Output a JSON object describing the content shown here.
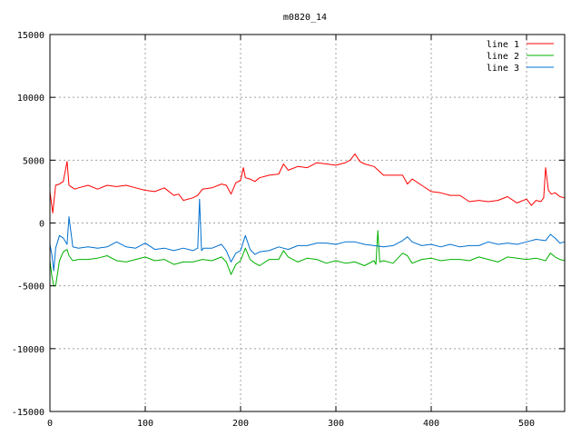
{
  "chart_data": {
    "type": "line",
    "title": "m0820_14",
    "xlabel": "",
    "ylabel": "",
    "xlim": [
      0,
      540
    ],
    "ylim": [
      -15000,
      15000
    ],
    "x_ticks": [
      "0",
      "100",
      "200",
      "300",
      "400",
      "500"
    ],
    "y_ticks": [
      "15000",
      "10000",
      "5000",
      "0",
      "-5000",
      "-10000",
      "-15000"
    ],
    "grid": true,
    "legend_position": "top-right",
    "series": [
      {
        "name": "line 1",
        "color": "#ff0000",
        "x": [
          0,
          3,
          6,
          10,
          14,
          18,
          20,
          22,
          26,
          30,
          40,
          50,
          60,
          70,
          80,
          90,
          100,
          110,
          120,
          130,
          135,
          140,
          150,
          155,
          160,
          170,
          180,
          185,
          190,
          195,
          200,
          203,
          205,
          210,
          215,
          220,
          230,
          240,
          245,
          250,
          260,
          270,
          280,
          290,
          300,
          310,
          315,
          320,
          325,
          330,
          340,
          350,
          360,
          370,
          375,
          380,
          390,
          400,
          410,
          420,
          430,
          440,
          450,
          460,
          470,
          480,
          490,
          500,
          505,
          510,
          515,
          518,
          520,
          523,
          526,
          530,
          535,
          540
        ],
        "y": [
          2500,
          800,
          3000,
          3100,
          3300,
          4900,
          3000,
          2900,
          2700,
          2800,
          3000,
          2700,
          3000,
          2900,
          3000,
          2800,
          2600,
          2500,
          2800,
          2200,
          2300,
          1800,
          2000,
          2200,
          2700,
          2800,
          3100,
          3000,
          2300,
          3200,
          3400,
          4400,
          3600,
          3500,
          3300,
          3600,
          3800,
          3900,
          4700,
          4200,
          4500,
          4400,
          4800,
          4700,
          4600,
          4800,
          5000,
          5500,
          4900,
          4700,
          4500,
          3800,
          3800,
          3800,
          3100,
          3500,
          3000,
          2500,
          2400,
          2200,
          2200,
          1700,
          1800,
          1700,
          1800,
          2100,
          1600,
          1900,
          1400,
          1800,
          1700,
          2000,
          4400,
          2600,
          2300,
          2400,
          2100,
          2000
        ]
      },
      {
        "name": "line 2",
        "color": "#00b000",
        "x": [
          0,
          2,
          4,
          6,
          10,
          14,
          18,
          20,
          24,
          30,
          40,
          50,
          60,
          70,
          80,
          90,
          100,
          110,
          120,
          130,
          140,
          150,
          160,
          170,
          180,
          185,
          190,
          195,
          200,
          205,
          210,
          215,
          220,
          230,
          240,
          245,
          250,
          260,
          270,
          280,
          290,
          300,
          310,
          320,
          330,
          340,
          342,
          344,
          346,
          350,
          360,
          370,
          375,
          380,
          390,
          400,
          410,
          420,
          430,
          440,
          450,
          460,
          470,
          480,
          490,
          500,
          510,
          520,
          525,
          530,
          535,
          540
        ],
        "y": [
          -3000,
          -4200,
          -5000,
          -5000,
          -3000,
          -2300,
          -2100,
          -2600,
          -3000,
          -2900,
          -2900,
          -2800,
          -2600,
          -3000,
          -3100,
          -2900,
          -2700,
          -3000,
          -2900,
          -3300,
          -3100,
          -3100,
          -2900,
          -3000,
          -2700,
          -3100,
          -4100,
          -3300,
          -3000,
          -2000,
          -2900,
          -3200,
          -3400,
          -2900,
          -2900,
          -2200,
          -2700,
          -3100,
          -2800,
          -2900,
          -3200,
          -3000,
          -3200,
          -3100,
          -3400,
          -3000,
          -3300,
          -600,
          -3100,
          -3000,
          -3200,
          -2400,
          -2600,
          -3200,
          -2900,
          -2800,
          -3000,
          -2900,
          -2900,
          -3000,
          -2700,
          -2900,
          -3100,
          -2700,
          -2800,
          -2900,
          -2800,
          -3000,
          -2400,
          -2700,
          -2900,
          -3000
        ]
      },
      {
        "name": "line 3",
        "color": "#0070d0",
        "x": [
          0,
          2,
          4,
          6,
          10,
          14,
          18,
          20,
          24,
          30,
          40,
          50,
          60,
          70,
          80,
          90,
          100,
          110,
          120,
          130,
          140,
          150,
          155,
          157,
          159,
          161,
          170,
          180,
          185,
          190,
          195,
          200,
          205,
          210,
          215,
          220,
          230,
          240,
          250,
          260,
          270,
          280,
          290,
          300,
          310,
          320,
          330,
          340,
          350,
          360,
          370,
          375,
          380,
          390,
          400,
          410,
          420,
          430,
          440,
          450,
          460,
          470,
          480,
          490,
          500,
          510,
          520,
          525,
          530,
          535,
          540
        ],
        "y": [
          -1700,
          -2500,
          -3800,
          -2000,
          -1000,
          -1200,
          -1700,
          500,
          -1900,
          -2000,
          -1900,
          -2000,
          -1900,
          -1500,
          -1900,
          -2000,
          -1600,
          -2100,
          -2000,
          -2200,
          -2000,
          -2200,
          -2000,
          1900,
          -2200,
          -2000,
          -2000,
          -1700,
          -2200,
          -3100,
          -2400,
          -2200,
          -1000,
          -2100,
          -2500,
          -2300,
          -2200,
          -1900,
          -2100,
          -1800,
          -1800,
          -1600,
          -1600,
          -1700,
          -1500,
          -1500,
          -1700,
          -1800,
          -1900,
          -1800,
          -1400,
          -1100,
          -1500,
          -1800,
          -1700,
          -1900,
          -1700,
          -1900,
          -1800,
          -1800,
          -1500,
          -1700,
          -1600,
          -1700,
          -1500,
          -1300,
          -1400,
          -900,
          -1200,
          -1600,
          -1500
        ]
      }
    ]
  }
}
